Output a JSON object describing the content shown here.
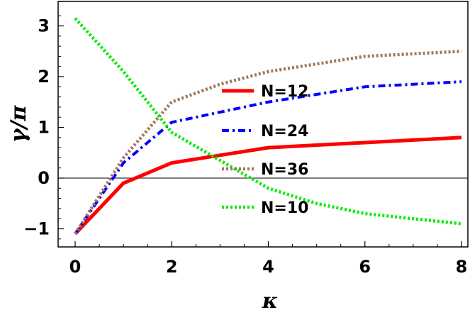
{
  "chart_data": {
    "type": "line",
    "title": "",
    "xlabel": "κ",
    "ylabel": "γ/π",
    "xlim": [
      0,
      8
    ],
    "ylim": [
      -1.3,
      3.3
    ],
    "x_ticks": [
      0,
      2,
      4,
      6,
      8
    ],
    "x_tick_labels": [
      "0",
      "2",
      "4",
      "6",
      "8"
    ],
    "y_ticks": [
      -1,
      0,
      1,
      2,
      3
    ],
    "y_tick_labels": [
      "−1",
      "0",
      "1",
      "2",
      "3"
    ],
    "zero_line": true,
    "grid": false,
    "legend_position": "center-right",
    "x": [
      0,
      1,
      2,
      3,
      4,
      5,
      6,
      7,
      8
    ],
    "series": [
      {
        "name": "N=12",
        "color": "#ff0000",
        "style": "solid",
        "values": [
          -1.1,
          -0.1,
          0.3,
          0.45,
          0.6,
          0.65,
          0.7,
          0.75,
          0.8
        ]
      },
      {
        "name": "N=24",
        "color": "#0000ff",
        "style": "dash-dot",
        "values": [
          -1.1,
          0.3,
          1.1,
          1.3,
          1.5,
          1.65,
          1.8,
          1.85,
          1.9
        ]
      },
      {
        "name": "N=36",
        "color": "#a0785a",
        "style": "dotted",
        "values": [
          -1.1,
          0.4,
          1.5,
          1.85,
          2.1,
          2.25,
          2.4,
          2.45,
          2.5
        ]
      },
      {
        "name": "N=10",
        "color": "#00ee00",
        "style": "dotted",
        "values": [
          3.15,
          2.1,
          0.9,
          0.35,
          -0.2,
          -0.5,
          -0.7,
          -0.8,
          -0.9
        ]
      }
    ]
  }
}
